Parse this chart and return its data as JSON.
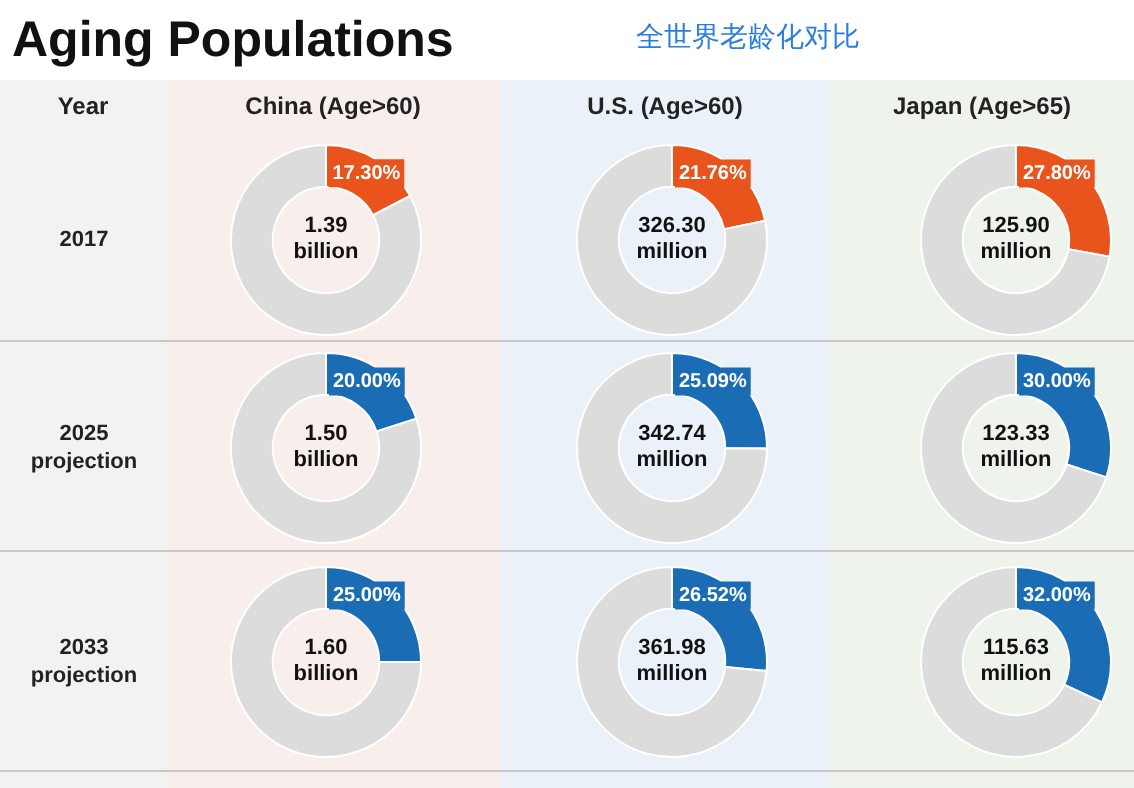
{
  "chart_data": [
    {
      "type": "other",
      "title": "Aging Populations",
      "subtitle": "全世界老龄化对比",
      "annotations": [
        "Year",
        "China (Age>60)",
        "U.S. (Age>60)",
        "Japan (Age>65)",
        "2017",
        "2025 projection",
        "2033 projection"
      ]
    },
    {
      "type": "donut",
      "categories": [
        null,
        null
      ],
      "values": [
        17.3,
        82.7
      ],
      "colors": [
        "#e8541c",
        "#dcdcdc"
      ],
      "value_labels": [
        "17.30%",
        null
      ],
      "annotations": [
        "1.39 billion"
      ]
    },
    {
      "type": "donut",
      "categories": [
        null,
        null
      ],
      "values": [
        21.76,
        78.24
      ],
      "colors": [
        "#e8541c",
        "#dcdcdc"
      ],
      "value_labels": [
        "21.76%",
        null
      ],
      "annotations": [
        "326.30 million"
      ]
    },
    {
      "type": "donut",
      "categories": [
        null,
        null
      ],
      "values": [
        27.8,
        72.2
      ],
      "colors": [
        "#e8541c",
        "#dcdcdc"
      ],
      "value_labels": [
        "27.80%",
        null
      ],
      "annotations": [
        "125.90 million"
      ]
    },
    {
      "type": "donut",
      "categories": [
        null,
        null
      ],
      "values": [
        20.0,
        80.0
      ],
      "colors": [
        "#1a6db5",
        "#dcdcdc"
      ],
      "value_labels": [
        "20.00%",
        null
      ],
      "annotations": [
        "1.50 billion"
      ]
    },
    {
      "type": "donut",
      "categories": [
        null,
        null
      ],
      "values": [
        25.09,
        74.91
      ],
      "colors": [
        "#1a6db5",
        "#dcdcdc"
      ],
      "value_labels": [
        "25.09%",
        null
      ],
      "annotations": [
        "342.74 million"
      ]
    },
    {
      "type": "donut",
      "categories": [
        null,
        null
      ],
      "values": [
        30.0,
        70.0
      ],
      "colors": [
        "#1a6db5",
        "#dcdcdc"
      ],
      "value_labels": [
        "30.00%",
        null
      ],
      "annotations": [
        "123.33 million"
      ]
    },
    {
      "type": "donut",
      "categories": [
        null,
        null
      ],
      "values": [
        25.0,
        75.0
      ],
      "colors": [
        "#1a6db5",
        "#dcdcdc"
      ],
      "value_labels": [
        "25.00%",
        null
      ],
      "annotations": [
        "1.60 billion"
      ]
    },
    {
      "type": "donut",
      "categories": [
        null,
        null
      ],
      "values": [
        26.52,
        73.48
      ],
      "colors": [
        "#1a6db5",
        "#dcdcdc"
      ],
      "value_labels": [
        "26.52%",
        null
      ],
      "annotations": [
        "361.98 million"
      ]
    },
    {
      "type": "donut",
      "categories": [
        null,
        null
      ],
      "values": [
        32.0,
        68.0
      ],
      "colors": [
        "#1a6db5",
        "#dcdcdc"
      ],
      "value_labels": [
        "32.00%",
        null
      ],
      "annotations": [
        "115.63 million"
      ]
    }
  ]
}
